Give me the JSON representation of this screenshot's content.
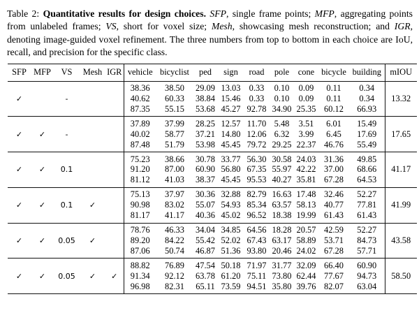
{
  "caption": {
    "segments": [
      {
        "text": "Table 2: ",
        "style": "normal"
      },
      {
        "text": "Quantitative results for design choices.",
        "style": "bold"
      },
      {
        "text": " ",
        "style": "normal"
      },
      {
        "text": "SFP",
        "style": "italic"
      },
      {
        "text": ", single frame points; ",
        "style": "normal"
      },
      {
        "text": "MFP",
        "style": "italic"
      },
      {
        "text": ", aggregating points from unlabeled frames; ",
        "style": "normal"
      },
      {
        "text": "VS",
        "style": "italic"
      },
      {
        "text": ", short for voxel size; ",
        "style": "normal"
      },
      {
        "text": "Mesh",
        "style": "italic"
      },
      {
        "text": ", showcasing mesh reconstruction; and ",
        "style": "normal"
      },
      {
        "text": "IGR",
        "style": "italic"
      },
      {
        "text": ", denoting image-guided voxel refinement. The three numbers from top to bottom in each choice are IoU, recall, and precision for the specific class.",
        "style": "normal"
      }
    ]
  },
  "table": {
    "config_headers": [
      "SFP",
      "MFP",
      "VS",
      "Mesh",
      "IGR"
    ],
    "class_headers": [
      "vehicle",
      "bicyclist",
      "ped",
      "sign",
      "road",
      "pole",
      "cone",
      "bicycle",
      "building"
    ],
    "miou_header": "mIOU",
    "metric_order": [
      "IoU",
      "recall",
      "precision"
    ],
    "check_glyph": "✓",
    "dash_glyph": "-",
    "rule_color": "#111111",
    "rows": [
      {
        "config": [
          "✓",
          "",
          "-",
          "",
          ""
        ],
        "iou": [
          "38.36",
          "38.50",
          "29.09",
          "13.03",
          "0.33",
          "0.10",
          "0.09",
          "0.11",
          "0.34"
        ],
        "recall": [
          "40.62",
          "60.33",
          "38.84",
          "15.46",
          "0.33",
          "0.10",
          "0.09",
          "0.11",
          "0.34"
        ],
        "precision": [
          "87.35",
          "55.15",
          "53.68",
          "45.27",
          "92.78",
          "34.90",
          "25.35",
          "60.12",
          "66.93"
        ],
        "miou": "13.32"
      },
      {
        "config": [
          "✓",
          "✓",
          "-",
          "",
          ""
        ],
        "iou": [
          "37.89",
          "37.99",
          "28.25",
          "12.57",
          "11.70",
          "5.48",
          "3.51",
          "6.01",
          "15.49"
        ],
        "recall": [
          "40.02",
          "58.77",
          "37.21",
          "14.80",
          "12.06",
          "6.32",
          "3.99",
          "6.45",
          "17.69"
        ],
        "precision": [
          "87.48",
          "51.79",
          "53.98",
          "45.45",
          "79.72",
          "29.25",
          "22.37",
          "46.76",
          "55.49"
        ],
        "miou": "17.65"
      },
      {
        "config": [
          "✓",
          "✓",
          "0.1",
          "",
          ""
        ],
        "iou": [
          "75.23",
          "38.66",
          "30.78",
          "33.77",
          "56.30",
          "30.58",
          "24.03",
          "31.36",
          "49.85"
        ],
        "recall": [
          "91.20",
          "87.00",
          "60.90",
          "56.80",
          "67.35",
          "55.97",
          "42.22",
          "37.00",
          "68.66"
        ],
        "precision": [
          "81.12",
          "41.03",
          "38.37",
          "45.45",
          "95.53",
          "40.27",
          "35.81",
          "67.28",
          "64.53"
        ],
        "miou": "41.17"
      },
      {
        "config": [
          "✓",
          "✓",
          "0.1",
          "✓",
          ""
        ],
        "iou": [
          "75.13",
          "37.97",
          "30.36",
          "32.88",
          "82.79",
          "16.63",
          "17.48",
          "32.46",
          "52.27"
        ],
        "recall": [
          "90.98",
          "83.02",
          "55.07",
          "54.93",
          "85.34",
          "63.57",
          "58.13",
          "40.77",
          "77.81"
        ],
        "precision": [
          "81.17",
          "41.17",
          "40.36",
          "45.02",
          "96.52",
          "18.38",
          "19.99",
          "61.43",
          "61.43"
        ],
        "miou": "41.99"
      },
      {
        "config": [
          "✓",
          "✓",
          "0.05",
          "✓",
          ""
        ],
        "iou": [
          "78.76",
          "46.33",
          "34.04",
          "34.85",
          "64.56",
          "18.28",
          "20.57",
          "42.59",
          "52.27"
        ],
        "recall": [
          "89.20",
          "84.22",
          "55.42",
          "52.02",
          "67.43",
          "63.17",
          "58.89",
          "53.71",
          "84.73"
        ],
        "precision": [
          "87.06",
          "50.74",
          "46.87",
          "51.36",
          "93.80",
          "20.46",
          "24.02",
          "67.28",
          "57.71"
        ],
        "miou": "43.58"
      },
      {
        "config": [
          "✓",
          "✓",
          "0.05",
          "✓",
          "✓"
        ],
        "iou": [
          "88.82",
          "76.89",
          "47.54",
          "50.18",
          "71.97",
          "31.77",
          "32.09",
          "66.40",
          "60.90"
        ],
        "recall": [
          "91.34",
          "92.12",
          "63.78",
          "61.20",
          "75.11",
          "73.80",
          "62.44",
          "77.67",
          "94.73"
        ],
        "precision": [
          "96.98",
          "82.31",
          "65.11",
          "73.59",
          "94.51",
          "35.80",
          "39.76",
          "82.07",
          "63.04"
        ],
        "miou": "58.50"
      }
    ]
  }
}
